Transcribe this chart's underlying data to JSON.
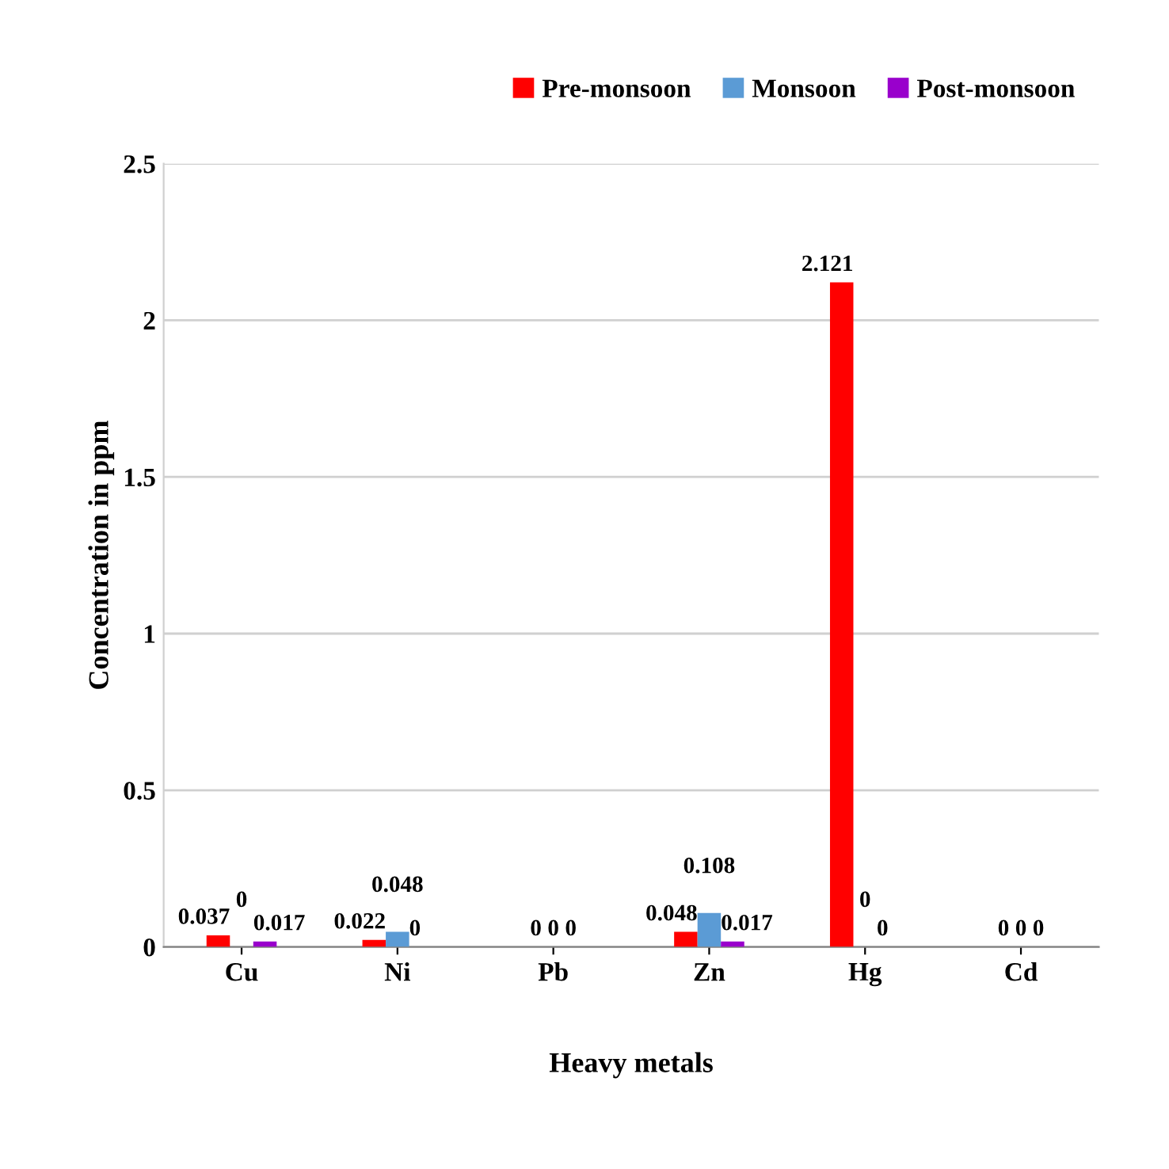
{
  "chart_data": {
    "type": "bar",
    "xlabel": "Heavy metals",
    "ylabel": "Concentration in ppm",
    "categories": [
      "Cu",
      "Ni",
      "Pb",
      "Zn",
      "Hg",
      "Cd"
    ],
    "series": [
      {
        "name": "Pre-monsoon",
        "color": "#ff0000",
        "values": [
          0.037,
          0.022,
          0,
          0.048,
          2.121,
          0
        ]
      },
      {
        "name": "Monsoon",
        "color": "#5b9bd5",
        "values": [
          0,
          0.048,
          0,
          0.108,
          0,
          0
        ]
      },
      {
        "name": "Post-monsoon",
        "color": "#9900cc",
        "values": [
          0.017,
          0,
          0,
          0.017,
          0,
          0
        ]
      }
    ],
    "ylim": [
      0,
      2.5
    ],
    "yticks": [
      0,
      0.5,
      1,
      1.5,
      2,
      2.5
    ],
    "grid": "y",
    "legend": "top right",
    "data_labels": true
  }
}
